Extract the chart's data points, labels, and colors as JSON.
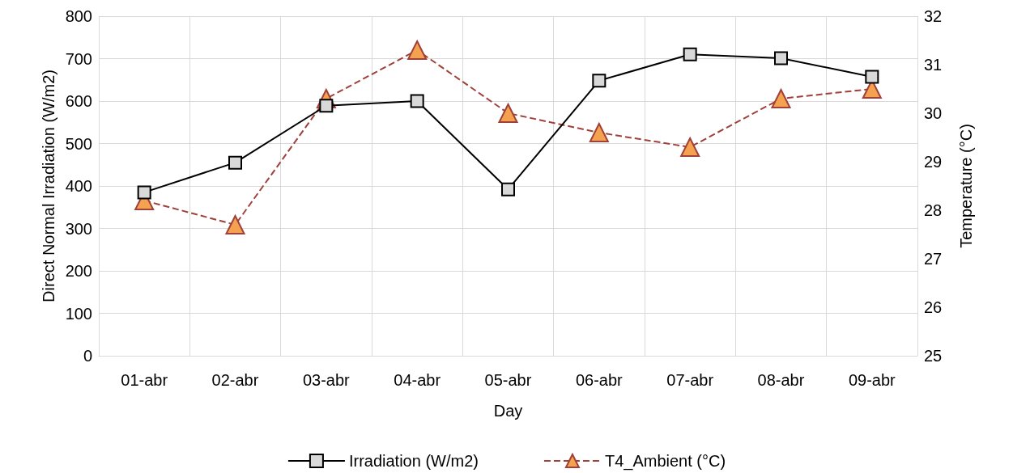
{
  "chart_data": {
    "type": "line",
    "xlabel": "Day",
    "ylabel": "Direct Normal Irradiation (W/m2)",
    "y2label": "Temperature (°C)",
    "categories": [
      "01-abr",
      "02-abr",
      "03-abr",
      "04-abr",
      "05-abr",
      "06-abr",
      "07-abr",
      "08-abr",
      "09-abr"
    ],
    "series": [
      {
        "name": "Irradiation (W/m2)",
        "color": "#000000",
        "marker": "square",
        "line_style": "solid",
        "values": [
          385,
          455,
          589,
          600,
          392,
          648,
          710,
          701,
          657
        ]
      },
      {
        "name": "T4_Ambient (°C)",
        "color": "#a0403a",
        "marker": "triangle",
        "line_style": "dashed",
        "axis": "y2",
        "values": [
          28.2,
          27.7,
          30.3,
          31.3,
          30.0,
          29.6,
          29.3,
          30.3,
          30.5
        ]
      }
    ],
    "ylim": [
      0,
      800
    ],
    "yticks": [
      0,
      100,
      200,
      300,
      400,
      500,
      600,
      700,
      800
    ],
    "y2lim": [
      25,
      32
    ],
    "y2ticks": [
      25,
      26,
      27,
      28,
      29,
      30,
      31,
      32
    ],
    "grid": true,
    "legend": "bottom"
  }
}
